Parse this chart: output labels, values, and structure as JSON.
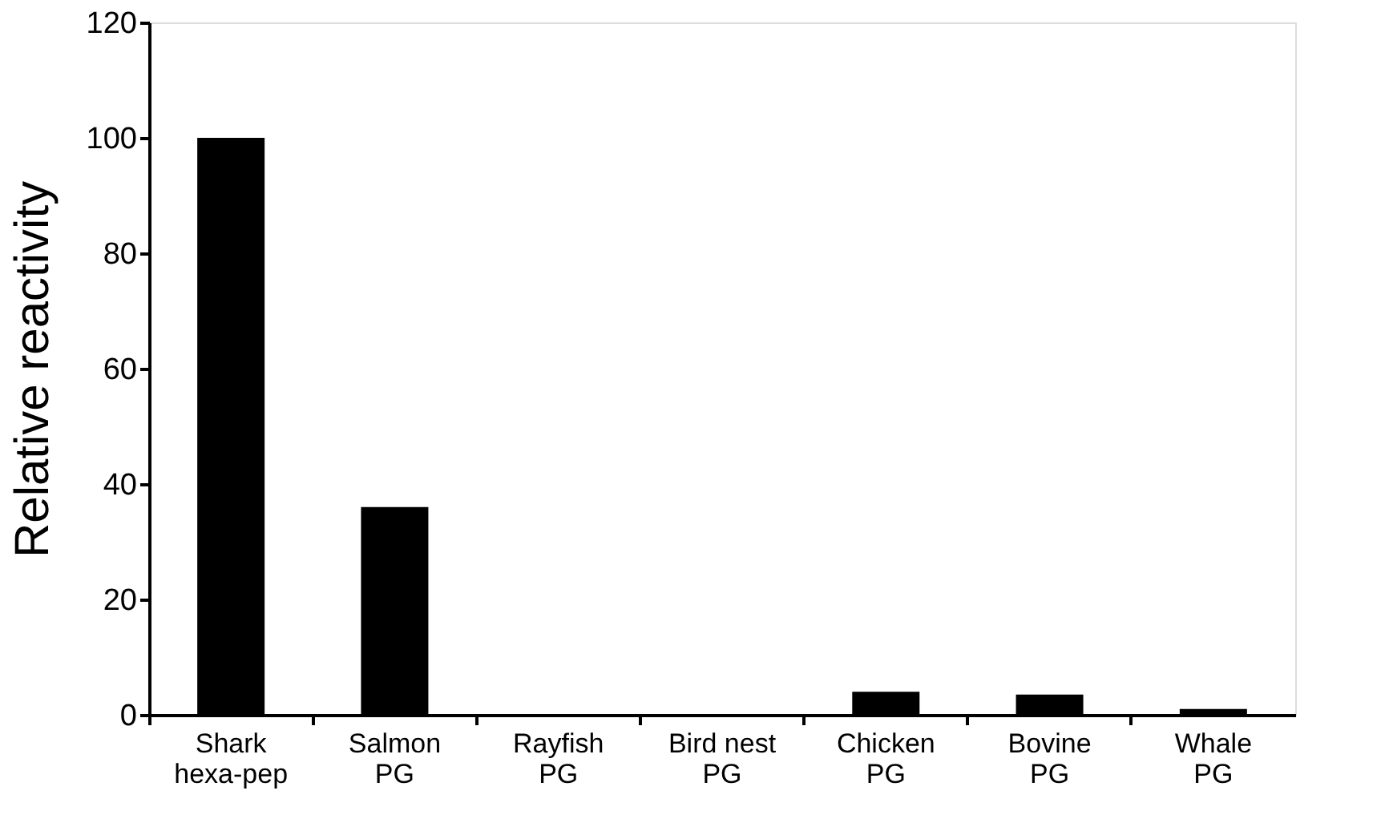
{
  "chart_data": {
    "type": "bar",
    "ylabel": "Relative reactivity",
    "categories": [
      "Shark\nhexa-pep",
      "Salmon\nPG",
      "Rayfish\nPG",
      "Bird nest\nPG",
      "Chicken\nPG",
      "Bovine\nPG",
      "Whale\nPG"
    ],
    "values": [
      100,
      36,
      0,
      0,
      4,
      3.5,
      1
    ],
    "color": "#000000",
    "ylim": [
      0,
      120
    ],
    "yticks": [
      0,
      20,
      40,
      60,
      80,
      100,
      120
    ],
    "grid": false
  }
}
